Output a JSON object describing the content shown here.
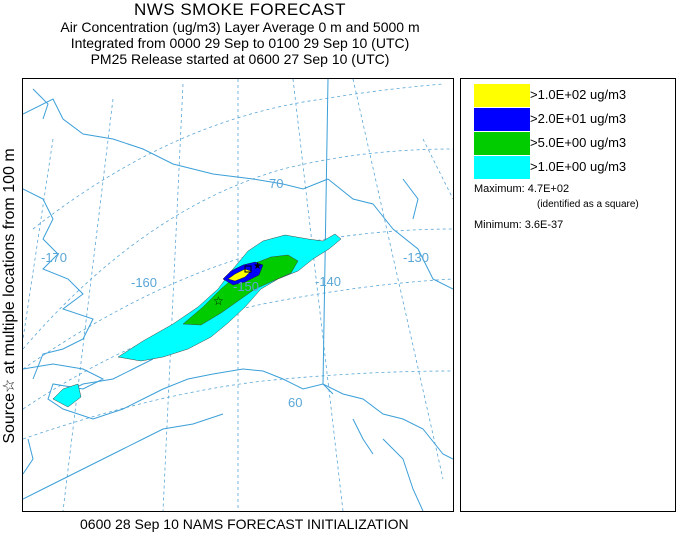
{
  "header": {
    "title": "NWS SMOKE FORECAST",
    "line1": "Air Concentration (ug/m3) Layer Average    0 m and  5000 m",
    "line2": "Integrated from 0000 29 Sep to 0100 29 Sep 10 (UTC)",
    "line3": "PM25 Release started at 0600 27 Sep 10 (UTC)"
  },
  "side_label": "Source☆  at multiple locations   from   100 m",
  "map": {
    "longitude_labels": [
      "-170",
      "-160",
      "-150",
      "-140",
      "-130"
    ],
    "latitude_labels": [
      "70",
      "60"
    ],
    "colors": {
      "ocean_grid": "#5aa6d6",
      "coast": "#3b9fd8",
      "level1": "#00ffff",
      "level2": "#00cc00",
      "level3": "#0000ff",
      "level4": "#ffff00"
    }
  },
  "legend": {
    "items": [
      {
        "label": ">1.0E+02 ug/m3",
        "color": "#ffff00"
      },
      {
        "label": ">2.0E+01 ug/m3",
        "color": "#0000ff"
      },
      {
        "label": ">5.0E+00 ug/m3",
        "color": "#00cc00"
      },
      {
        "label": ">1.0E+00 ug/m3",
        "color": "#00ffff"
      }
    ],
    "maximum_label": "Maximum: 4.7E+02",
    "maximum_note": "(identified as a square)",
    "minimum_label": "Minimum: 3.6E-37"
  },
  "footer": "0600 28 Sep 10 NAMS FORECAST INITIALIZATION"
}
